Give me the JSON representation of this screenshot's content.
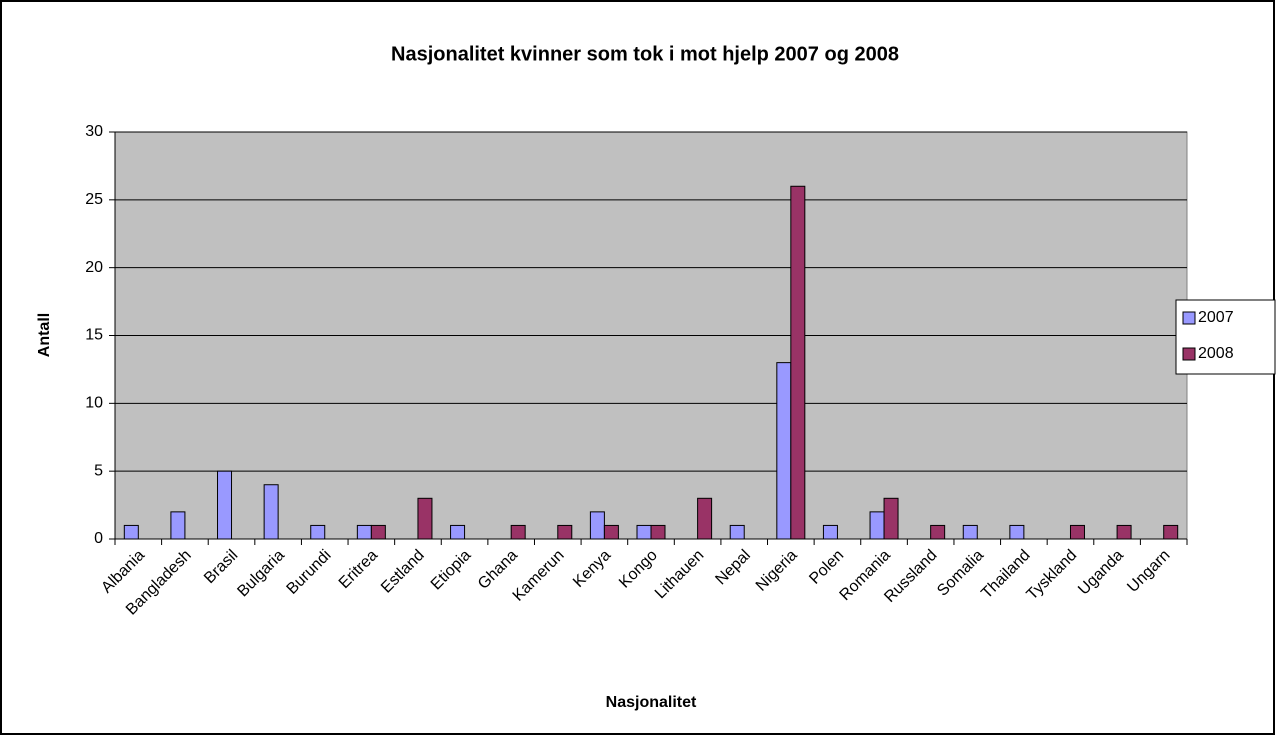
{
  "chart_data": {
    "type": "bar",
    "title": "Nasjonalitet kvinner som tok i mot hjelp 2007 og 2008",
    "x_label": "Nasjonalitet",
    "y_label": "Antall",
    "categories": [
      "Albania",
      "Bangladesh",
      "Brasil",
      "Bulgaria",
      "Burundi",
      "Eritrea",
      "Estland",
      "Etiopia",
      "Ghana",
      "Kamerun",
      "Kenya",
      "Kongo",
      "Lithauen",
      "Nepal",
      "Nigeria",
      "Polen",
      "Romania",
      "Russland",
      "Somalia",
      "Thailand",
      "Tyskland",
      "Uganda",
      "Ungarn"
    ],
    "series": [
      {
        "name": "2007",
        "color": "#9999ff",
        "values": [
          1,
          2,
          5,
          4,
          1,
          1,
          0,
          1,
          0,
          0,
          2,
          1,
          0,
          1,
          13,
          1,
          2,
          0,
          1,
          1,
          0,
          0,
          0
        ]
      },
      {
        "name": "2008",
        "color": "#993366",
        "values": [
          0,
          0,
          0,
          0,
          0,
          1,
          3,
          0,
          1,
          1,
          1,
          1,
          3,
          0,
          26,
          0,
          3,
          1,
          0,
          0,
          1,
          1,
          1
        ]
      }
    ],
    "ylim": [
      0,
      30
    ],
    "yticks": [
      0,
      5,
      10,
      15,
      20,
      25,
      30
    ],
    "grid": true,
    "legend": "right",
    "plot_background": "#c0c0c0"
  }
}
